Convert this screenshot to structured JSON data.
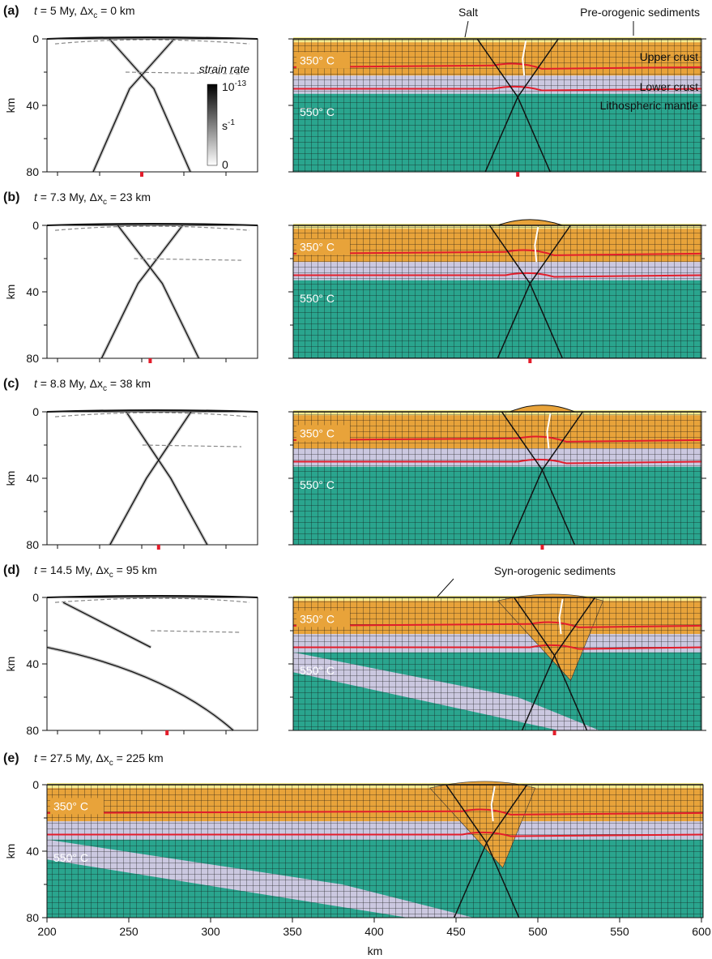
{
  "figure": {
    "panels": [
      {
        "label": "(a)",
        "caption": [
          "t",
          " = 5 My, Δx",
          "c",
          " = 0 km"
        ]
      },
      {
        "label": "(b)",
        "caption": [
          "t",
          " = 7.3 My, Δx",
          "c",
          " = 23 km"
        ]
      },
      {
        "label": "(c)",
        "caption": [
          "t",
          " = 8.8 My, Δx",
          "c",
          " = 38 km"
        ]
      },
      {
        "label": "(d)",
        "caption": [
          "t",
          " = 14.5 My, Δx",
          "c",
          " = 95 km"
        ]
      },
      {
        "label": "(e)",
        "caption": [
          "t",
          " = 27.5 My, Δx",
          "c",
          " = 225 km"
        ]
      }
    ],
    "y_axis_label": "km",
    "ylim": [
      0,
      80
    ],
    "yticks": [
      0,
      40,
      80
    ],
    "minor_yticks": [
      20,
      60
    ],
    "x_axis_label": "km",
    "xlim": [
      200,
      601
    ],
    "xticks": [
      200,
      250,
      300,
      350,
      400,
      450,
      500,
      550,
      600
    ],
    "isotherms": [
      "350° C",
      "550° C"
    ],
    "layers": [
      "Upper crust",
      "Lower crust",
      "Lithospheric mantle"
    ],
    "annotations": {
      "salt": "Salt",
      "pre_orogenic": "Pre-orogenic sediments",
      "syn_orogenic": "Syn-orogenic sediments"
    },
    "colorbar": {
      "title": "strain rate",
      "max_base": "10",
      "max_exp": "-13",
      "unit_base": "s",
      "unit_exp": "-1",
      "min": "0"
    }
  }
}
